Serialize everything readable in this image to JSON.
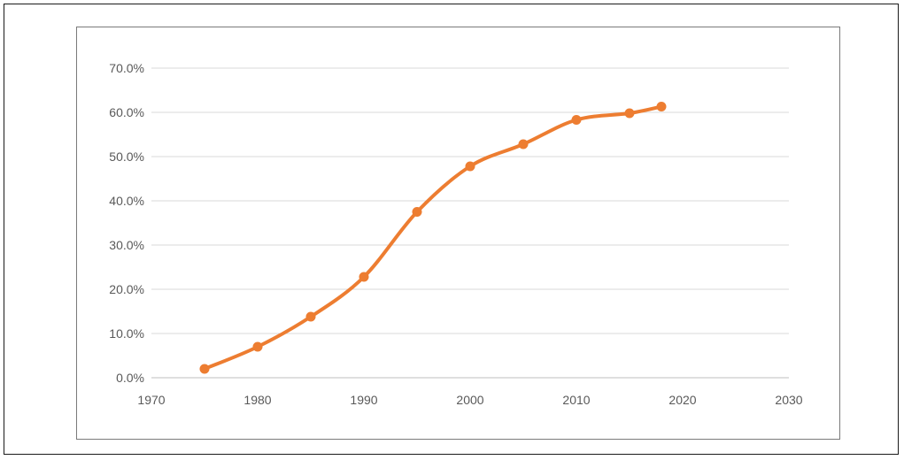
{
  "chart_data": {
    "type": "scatter",
    "title": "",
    "xlabel": "",
    "ylabel": "",
    "xlim": [
      1970,
      2030
    ],
    "ylim": [
      0,
      70
    ],
    "x_ticks": [
      1970,
      1980,
      1990,
      2000,
      2010,
      2020,
      2030
    ],
    "y_ticks": [
      "0.0%",
      "10.0%",
      "20.0%",
      "30.0%",
      "40.0%",
      "50.0%",
      "60.0%",
      "70.0%"
    ],
    "y_tick_values": [
      0,
      10,
      20,
      30,
      40,
      50,
      60,
      70
    ],
    "grid": "horizontal",
    "legend": "none",
    "series": [
      {
        "color": "#ed7d31",
        "smooth": true,
        "markers": true,
        "x": [
          1975,
          1980,
          1985,
          1990,
          1995,
          2000,
          2005,
          2010,
          2015,
          2018
        ],
        "y": [
          2.0,
          7.0,
          13.8,
          22.8,
          37.5,
          47.8,
          52.8,
          58.3,
          59.8,
          61.3
        ]
      }
    ]
  }
}
